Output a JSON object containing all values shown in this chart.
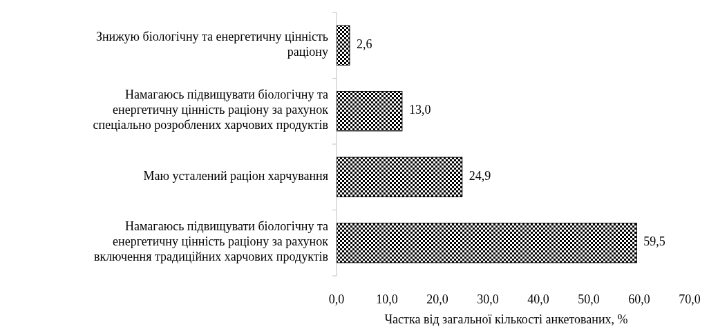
{
  "chart_data": {
    "type": "bar",
    "orientation": "horizontal",
    "categories": [
      "Знижую біологічну та енергетичну цінність раціону",
      "Намагаюсь підвищувати біологічну та енергетичну цінність раціону за рахунок спеціально розроблених харчових продуктів",
      "Маю усталений раціон харчування",
      "Намагаюсь підвищувати біологічну та енергетичну цінність раціону за рахунок включення традиційних харчових продуктів"
    ],
    "values": [
      2.6,
      13.0,
      24.9,
      59.5
    ],
    "value_labels": [
      "2,6",
      "13,0",
      "24,9",
      "59,5"
    ],
    "color": "#000000",
    "xlim": [
      0,
      70
    ],
    "xticks": [
      {
        "value": 0,
        "label": "0,0"
      },
      {
        "value": 10,
        "label": "10,0"
      },
      {
        "value": 20,
        "label": "20,0"
      },
      {
        "value": 30,
        "label": "30,0"
      },
      {
        "value": 40,
        "label": "40,0"
      },
      {
        "value": 50,
        "label": "50,0"
      },
      {
        "value": 60,
        "label": "60,0"
      },
      {
        "value": 70,
        "label": "70,0"
      }
    ],
    "xlabel": "Частка від загальної кількості анкетованих, %",
    "grid": false
  }
}
